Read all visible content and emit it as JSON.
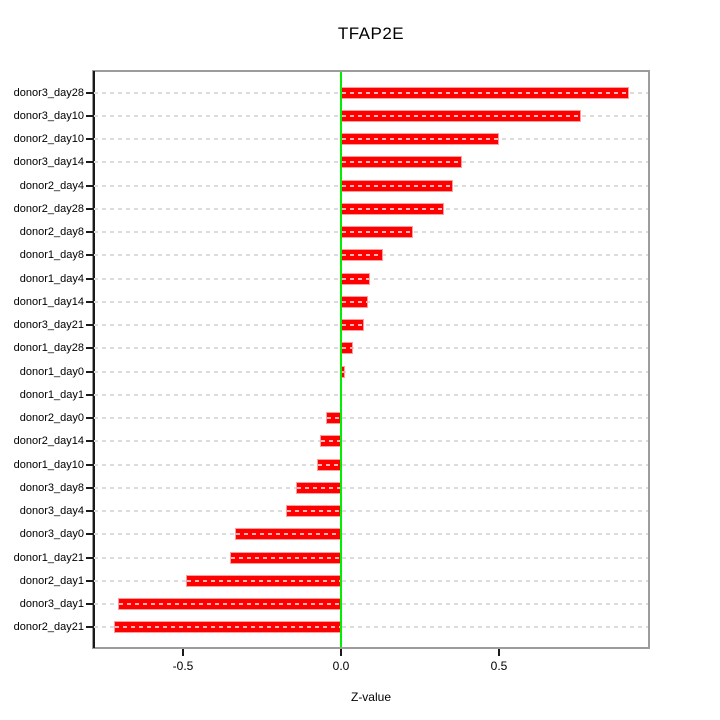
{
  "title": "TFAP2E",
  "xlabel": "Z-value",
  "chart_data": {
    "type": "bar",
    "orientation": "horizontal",
    "order": "top-to-bottom",
    "title": "TFAP2E",
    "xlabel": "Z-value",
    "ylabel": "",
    "xlim": [
      -0.78,
      0.97
    ],
    "xticks": [
      -0.5,
      0.0,
      0.5
    ],
    "xtick_labels": [
      "-0.5",
      "0.0",
      "0.5"
    ],
    "grid": true,
    "grid_style": "dashed",
    "legend_position": "none",
    "bar_color": "#ff0000",
    "zero_line_color": "#00ee00",
    "grid_color": "#dcdcdc",
    "box_color": "#9c9c9c",
    "categories": [
      "donor3_day28",
      "donor3_day10",
      "donor2_day10",
      "donor3_day14",
      "donor2_day4",
      "donor2_day28",
      "donor2_day8",
      "donor1_day8",
      "donor1_day4",
      "donor1_day14",
      "donor3_day21",
      "donor1_day28",
      "donor1_day0",
      "donor1_day1",
      "donor2_day0",
      "donor2_day14",
      "donor1_day10",
      "donor3_day8",
      "donor3_day4",
      "donor3_day0",
      "donor1_day21",
      "donor2_day1",
      "donor3_day1",
      "donor2_day21"
    ],
    "values": [
      0.91,
      0.76,
      0.5,
      0.383,
      0.355,
      0.326,
      0.228,
      0.133,
      0.092,
      0.085,
      0.073,
      0.038,
      0.013,
      0.0,
      -0.047,
      -0.066,
      -0.076,
      -0.142,
      -0.174,
      -0.335,
      -0.351,
      -0.49,
      -0.706,
      -0.718
    ]
  }
}
